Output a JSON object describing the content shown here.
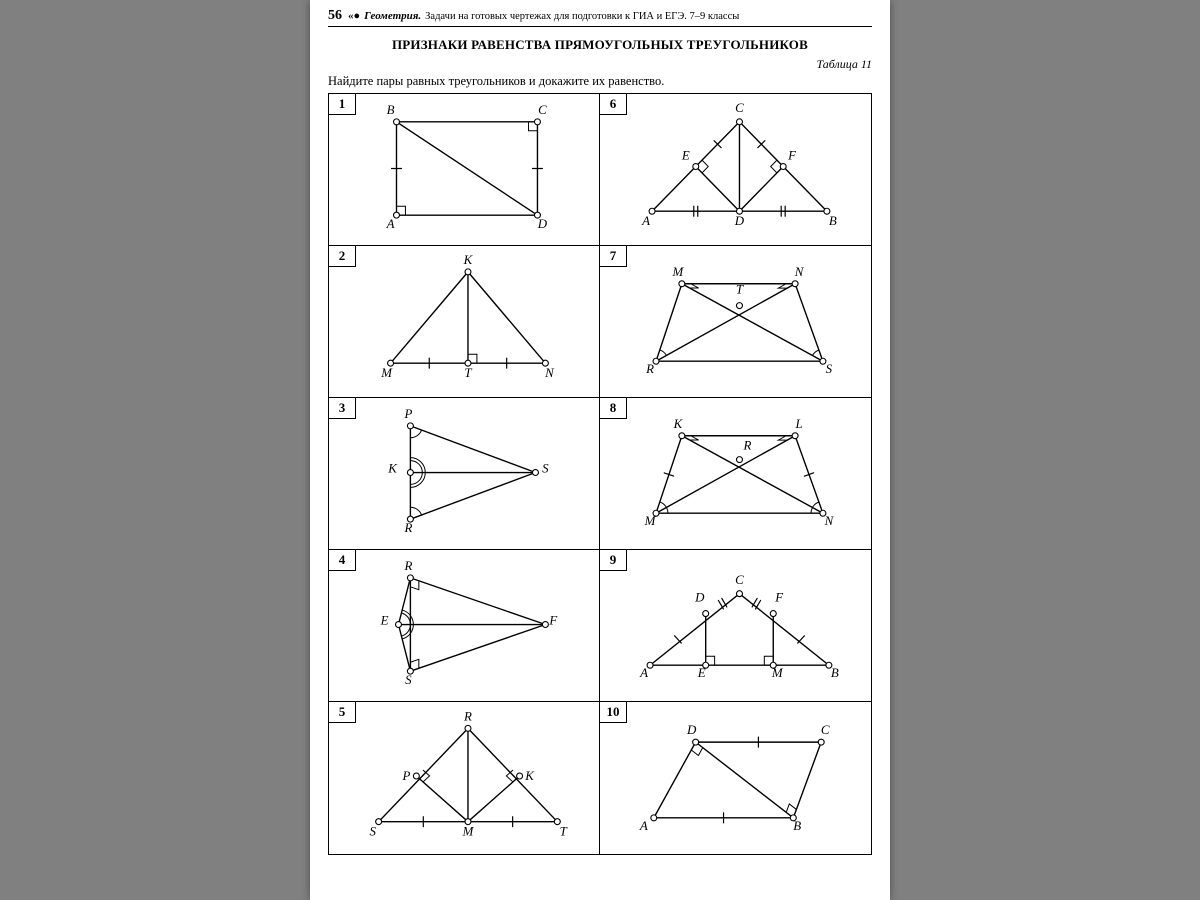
{
  "page_number": "56",
  "header_symbol": "«●",
  "book_title": "Геометрия.",
  "header_rest": "Задачи на готовых чертежах для подготовки к ГИА и ЕГЭ. 7–9 классы",
  "title": "ПРИЗНАКИ РАВЕНСТВА ПРЯМОУГОЛЬНЫХ ТРЕУГОЛЬНИКОВ",
  "table_label": "Таблица 11",
  "instruction": "Найдите пары равных треугольников и докажите их равенство.",
  "colors": {
    "page_bg": "#ffffff",
    "outer_bg": "#808080",
    "ink": "#000000"
  },
  "open_circle": {
    "r": 3,
    "fill": "#ffffff",
    "stroke": "#000000",
    "sw": 1.1
  },
  "line_style": {
    "sw": 1.4,
    "color": "#000000"
  },
  "cells": [
    {
      "n": "1",
      "labels": {
        "B": [
          62,
          20
        ],
        "C": [
          215,
          20
        ],
        "A": [
          62,
          135
        ],
        "D": [
          215,
          135
        ]
      },
      "points": {
        "A": [
          68,
          122
        ],
        "B": [
          68,
          28
        ],
        "C": [
          210,
          28
        ],
        "D": [
          210,
          122
        ]
      },
      "lines": [
        [
          "A",
          "B"
        ],
        [
          "B",
          "C"
        ],
        [
          "C",
          "D"
        ],
        [
          "D",
          "A"
        ],
        [
          "B",
          "D"
        ]
      ],
      "ticks": [
        {
          "on": [
            "A",
            "B"
          ],
          "t": 0.5,
          "n": 1
        },
        {
          "on": [
            "C",
            "D"
          ],
          "t": 0.5,
          "n": 1
        }
      ],
      "right_angles": [
        {
          "at": "A",
          "along": [
            "B",
            "D"
          ]
        },
        {
          "at": "C",
          "along": [
            "B",
            "D"
          ]
        }
      ]
    },
    {
      "n": "6",
      "labels": {
        "C": [
          140,
          18
        ],
        "E": [
          86,
          66
        ],
        "F": [
          193,
          66
        ],
        "A": [
          46,
          132
        ],
        "D": [
          140,
          132
        ],
        "B": [
          234,
          132
        ]
      },
      "points": {
        "C": [
          140,
          28
        ],
        "A": [
          52,
          118
        ],
        "B": [
          228,
          118
        ],
        "D": [
          140,
          118
        ],
        "E": [
          96,
          73
        ],
        "F": [
          184,
          73
        ]
      },
      "lines": [
        [
          "A",
          "C"
        ],
        [
          "B",
          "C"
        ],
        [
          "A",
          "B"
        ],
        [
          "C",
          "D"
        ],
        [
          "D",
          "E"
        ],
        [
          "D",
          "F"
        ]
      ],
      "ticks": [
        {
          "on": [
            "A",
            "D"
          ],
          "t": 0.5,
          "n": 2
        },
        {
          "on": [
            "D",
            "B"
          ],
          "t": 0.5,
          "n": 2
        },
        {
          "on": [
            "E",
            "C"
          ],
          "t": 0.5,
          "n": 1
        },
        {
          "on": [
            "F",
            "C"
          ],
          "t": 0.5,
          "n": 1
        }
      ],
      "right_angles": [
        {
          "at": "E",
          "along": [
            "D",
            "C"
          ]
        },
        {
          "at": "F",
          "along": [
            "D",
            "C"
          ]
        }
      ]
    },
    {
      "n": "2",
      "labels": {
        "K": [
          140,
          18
        ],
        "M": [
          58,
          132
        ],
        "T": [
          140,
          132
        ],
        "N": [
          222,
          132
        ]
      },
      "points": {
        "K": [
          140,
          26
        ],
        "M": [
          62,
          118
        ],
        "N": [
          218,
          118
        ],
        "T": [
          140,
          118
        ]
      },
      "lines": [
        [
          "M",
          "K"
        ],
        [
          "K",
          "N"
        ],
        [
          "M",
          "N"
        ],
        [
          "K",
          "T"
        ]
      ],
      "ticks": [
        {
          "on": [
            "M",
            "T"
          ],
          "t": 0.5,
          "n": 1
        },
        {
          "on": [
            "T",
            "N"
          ],
          "t": 0.5,
          "n": 1
        }
      ],
      "right_angles": [
        {
          "at": "T",
          "along": [
            "K",
            "N"
          ]
        }
      ]
    },
    {
      "n": "7",
      "labels": {
        "M": [
          78,
          30
        ],
        "N": [
          200,
          30
        ],
        "T": [
          140,
          48
        ],
        "R": [
          50,
          128
        ],
        "S": [
          230,
          128
        ]
      },
      "points": {
        "M": [
          82,
          38
        ],
        "N": [
          196,
          38
        ],
        "R": [
          56,
          116
        ],
        "S": [
          224,
          116
        ],
        "T": [
          140,
          60
        ]
      },
      "lines": [
        [
          "M",
          "N"
        ],
        [
          "R",
          "S"
        ],
        [
          "M",
          "R"
        ],
        [
          "N",
          "S"
        ],
        [
          "M",
          "S"
        ],
        [
          "N",
          "R"
        ]
      ],
      "ticks": [],
      "right_angles": [
        {
          "at": "M",
          "along": [
            "N",
            "S"
          ]
        },
        {
          "at": "N",
          "along": [
            "M",
            "R"
          ]
        }
      ],
      "angle_arcs": [
        {
          "at": "R",
          "between": [
            "M",
            "N"
          ]
        },
        {
          "at": "S",
          "between": [
            "N",
            "M"
          ]
        }
      ]
    },
    {
      "n": "3",
      "labels": {
        "P": [
          80,
          20
        ],
        "K": [
          64,
          75
        ],
        "S": [
          218,
          75
        ],
        "R": [
          80,
          135
        ]
      },
      "points": {
        "P": [
          82,
          28
        ],
        "R": [
          82,
          122
        ],
        "K": [
          82,
          75
        ],
        "S": [
          208,
          75
        ]
      },
      "lines": [
        [
          "P",
          "R"
        ],
        [
          "P",
          "S"
        ],
        [
          "R",
          "S"
        ],
        [
          "K",
          "S"
        ]
      ],
      "ticks": [],
      "right_angles": [],
      "angle_arcs": [
        {
          "at": "P",
          "between": [
            "R",
            "S"
          ]
        },
        {
          "at": "R",
          "between": [
            "P",
            "S"
          ]
        },
        {
          "at": "K",
          "between": [
            "P",
            "S"
          ],
          "double": true
        },
        {
          "at": "K",
          "between": [
            "R",
            "S"
          ],
          "double": true
        }
      ]
    },
    {
      "n": "8",
      "labels": {
        "K": [
          78,
          30
        ],
        "L": [
          200,
          30
        ],
        "R": [
          148,
          52
        ],
        "M": [
          50,
          128
        ],
        "N": [
          230,
          128
        ]
      },
      "points": {
        "K": [
          82,
          38
        ],
        "L": [
          196,
          38
        ],
        "M": [
          56,
          116
        ],
        "N": [
          224,
          116
        ],
        "R": [
          140,
          62
        ]
      },
      "lines": [
        [
          "K",
          "L"
        ],
        [
          "M",
          "N"
        ],
        [
          "K",
          "M"
        ],
        [
          "L",
          "N"
        ],
        [
          "K",
          "N"
        ],
        [
          "L",
          "M"
        ]
      ],
      "ticks": [
        {
          "on": [
            "K",
            "M"
          ],
          "t": 0.5,
          "n": 1
        },
        {
          "on": [
            "L",
            "N"
          ],
          "t": 0.5,
          "n": 1
        }
      ],
      "right_angles": [
        {
          "at": "K",
          "along": [
            "L",
            "N"
          ]
        },
        {
          "at": "L",
          "along": [
            "K",
            "M"
          ]
        }
      ],
      "angle_arcs": [
        {
          "at": "M",
          "between": [
            "K",
            "N"
          ]
        },
        {
          "at": "N",
          "between": [
            "L",
            "M"
          ]
        }
      ]
    },
    {
      "n": "4",
      "labels": {
        "R": [
          80,
          20
        ],
        "E": [
          56,
          75
        ],
        "F": [
          226,
          75
        ],
        "S": [
          80,
          135
        ]
      },
      "points": {
        "R": [
          82,
          28
        ],
        "S": [
          82,
          122
        ],
        "E": [
          70,
          75
        ],
        "F": [
          218,
          75
        ]
      },
      "lines": [
        [
          "R",
          "S"
        ],
        [
          "R",
          "F"
        ],
        [
          "S",
          "F"
        ],
        [
          "E",
          "F"
        ],
        [
          "E",
          "R"
        ],
        [
          "E",
          "S"
        ]
      ],
      "ticks": [],
      "right_angles": [
        {
          "at": "R",
          "along": [
            "S",
            "F"
          ]
        },
        {
          "at": "S",
          "along": [
            "R",
            "F"
          ]
        }
      ],
      "angle_arcs": [
        {
          "at": "E",
          "between": [
            "R",
            "F"
          ],
          "double": true
        },
        {
          "at": "E",
          "between": [
            "S",
            "F"
          ],
          "double": true
        }
      ]
    },
    {
      "n": "9",
      "labels": {
        "C": [
          140,
          34
        ],
        "D": [
          100,
          52
        ],
        "F": [
          180,
          52
        ],
        "A": [
          44,
          128
        ],
        "E": [
          102,
          128
        ],
        "M": [
          178,
          128
        ],
        "B": [
          236,
          128
        ]
      },
      "points": {
        "C": [
          140,
          44
        ],
        "A": [
          50,
          116
        ],
        "B": [
          230,
          116
        ],
        "D": [
          106,
          64
        ],
        "F": [
          174,
          64
        ],
        "E": [
          106,
          116
        ],
        "M": [
          174,
          116
        ]
      },
      "lines": [
        [
          "A",
          "C"
        ],
        [
          "C",
          "B"
        ],
        [
          "A",
          "B"
        ],
        [
          "D",
          "E"
        ],
        [
          "F",
          "M"
        ]
      ],
      "ticks": [
        {
          "on": [
            "D",
            "C"
          ],
          "t": 0.5,
          "n": 2
        },
        {
          "on": [
            "C",
            "F"
          ],
          "t": 0.5,
          "n": 2
        },
        {
          "on": [
            "A",
            "D"
          ],
          "t": 0.5,
          "n": 1
        },
        {
          "on": [
            "F",
            "B"
          ],
          "t": 0.5,
          "n": 1
        }
      ],
      "right_angles": [
        {
          "at": "E",
          "along": [
            "D",
            "M"
          ]
        },
        {
          "at": "M",
          "along": [
            "F",
            "E"
          ]
        }
      ]
    },
    {
      "n": "5",
      "labels": {
        "R": [
          140,
          18
        ],
        "P": [
          78,
          78
        ],
        "K": [
          202,
          78
        ],
        "S": [
          44,
          134
        ],
        "M": [
          140,
          134
        ],
        "T": [
          236,
          134
        ]
      },
      "points": {
        "R": [
          140,
          26
        ],
        "S": [
          50,
          120
        ],
        "T": [
          230,
          120
        ],
        "M": [
          140,
          120
        ],
        "P": [
          88,
          74
        ],
        "K": [
          192,
          74
        ]
      },
      "lines": [
        [
          "S",
          "R"
        ],
        [
          "R",
          "T"
        ],
        [
          "S",
          "T"
        ],
        [
          "R",
          "M"
        ],
        [
          "M",
          "P"
        ],
        [
          "M",
          "K"
        ]
      ],
      "ticks": [
        {
          "on": [
            "S",
            "M"
          ],
          "t": 0.5,
          "n": 1
        },
        {
          "on": [
            "M",
            "T"
          ],
          "t": 0.5,
          "n": 1
        }
      ],
      "right_angles": [
        {
          "at": "P",
          "along": [
            "M",
            "R"
          ]
        },
        {
          "at": "K",
          "along": [
            "M",
            "R"
          ]
        }
      ]
    },
    {
      "n": "10",
      "labels": {
        "D": [
          92,
          32
        ],
        "C": [
          226,
          32
        ],
        "A": [
          44,
          128
        ],
        "B": [
          198,
          128
        ]
      },
      "points": {
        "D": [
          96,
          40
        ],
        "C": [
          222,
          40
        ],
        "A": [
          54,
          116
        ],
        "B": [
          194,
          116
        ]
      },
      "lines": [
        [
          "A",
          "D"
        ],
        [
          "D",
          "C"
        ],
        [
          "C",
          "B"
        ],
        [
          "A",
          "B"
        ],
        [
          "D",
          "B"
        ]
      ],
      "ticks": [
        {
          "on": [
            "D",
            "C"
          ],
          "t": 0.5,
          "n": 1
        },
        {
          "on": [
            "A",
            "B"
          ],
          "t": 0.5,
          "n": 1
        }
      ],
      "right_angles": [
        {
          "at": "D",
          "along": [
            "A",
            "B"
          ]
        },
        {
          "at": "B",
          "along": [
            "C",
            "D"
          ]
        }
      ]
    }
  ]
}
